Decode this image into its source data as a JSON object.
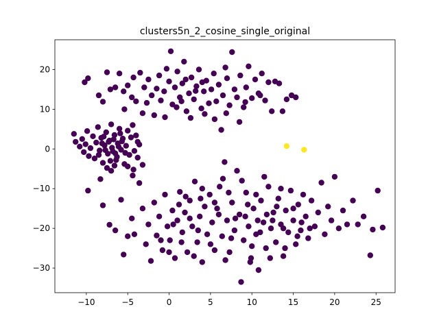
{
  "chart_data": {
    "type": "scatter",
    "title": "clusters5n_2_cosine_single_original",
    "xlabel": "",
    "ylabel": "",
    "xlim": [
      -13.8,
      27.3
    ],
    "ylim": [
      -36.2,
      27.5
    ],
    "xticks": [
      -10,
      -5,
      0,
      5,
      10,
      15,
      20,
      25
    ],
    "yticks": [
      20,
      10,
      0,
      -10,
      -20,
      -30
    ],
    "grid": false,
    "colors": {
      "cluster_0": "#440154",
      "cluster_1": "#fde725",
      "axes": "#000000"
    },
    "series": [
      {
        "cluster": 0,
        "color": "#440154",
        "points": [
          [
            -11.5,
            3.8
          ],
          [
            -11.3,
            1.8
          ],
          [
            -10.8,
            0.6
          ],
          [
            -10.5,
            2.5
          ],
          [
            -10.3,
            -0.8
          ],
          [
            -10.1,
            1.2
          ],
          [
            -9.9,
            4.5
          ],
          [
            -9.7,
            -1.8
          ],
          [
            -9.5,
            0.2
          ],
          [
            -9.2,
            3.2
          ],
          [
            -9.0,
            -2.4
          ],
          [
            -8.8,
            1.6
          ],
          [
            -8.6,
            5.5
          ],
          [
            -8.4,
            -0.4
          ],
          [
            -8.2,
            2.8
          ],
          [
            -8.0,
            -3.5
          ],
          [
            -7.8,
            0.9
          ],
          [
            -7.6,
            4.2
          ],
          [
            -7.4,
            -1.2
          ],
          [
            -7.2,
            2.1
          ],
          [
            -7.0,
            6.2
          ],
          [
            -6.8,
            -0.6
          ],
          [
            -6.6,
            3.5
          ],
          [
            -6.4,
            -2.8
          ],
          [
            -6.2,
            1.4
          ],
          [
            -6.0,
            5.1
          ],
          [
            -5.8,
            -0.2
          ],
          [
            -5.6,
            2.6
          ],
          [
            -5.4,
            -3.8
          ],
          [
            -5.2,
            0.8
          ],
          [
            -5.0,
            4.6
          ],
          [
            -4.8,
            -1.5
          ],
          [
            -4.6,
            2.9
          ],
          [
            -4.4,
            6.0
          ],
          [
            -4.2,
            -0.5
          ],
          [
            -4.0,
            3.4
          ],
          [
            -3.8,
            -2.2
          ],
          [
            -3.6,
            1.1
          ],
          [
            -6.9,
            0.3
          ],
          [
            -7.3,
            1.8
          ],
          [
            -6.5,
            -1.1
          ],
          [
            -7.7,
            -0.3
          ],
          [
            -6.1,
            0.6
          ],
          [
            -8.1,
            1.4
          ],
          [
            -5.7,
            1.9
          ],
          [
            -6.7,
            2.4
          ],
          [
            -7.9,
            3.1
          ],
          [
            -6.3,
            -2.0
          ],
          [
            -5.3,
            -1.0
          ],
          [
            -8.5,
            -1.5
          ],
          [
            -7.1,
            -3.0
          ],
          [
            -5.9,
            3.9
          ],
          [
            -6.6,
            -4.2
          ],
          [
            -7.5,
            -4.8
          ],
          [
            -8.3,
            -7.6
          ],
          [
            -7.0,
            -5.5
          ],
          [
            -5.0,
            -4.4
          ],
          [
            -4.3,
            -5.2
          ],
          [
            -3.2,
            -4.0
          ],
          [
            -4.4,
            -6.7
          ],
          [
            -3.8,
            1.8
          ],
          [
            -10.2,
            16.8
          ],
          [
            -9.8,
            17.8
          ],
          [
            -8.5,
            13.5
          ],
          [
            -8.0,
            11.9
          ],
          [
            -7.5,
            19.3
          ],
          [
            -7.1,
            15.0
          ],
          [
            -6.5,
            15.5
          ],
          [
            -6.0,
            19.0
          ],
          [
            -5.5,
            14.5
          ],
          [
            -5.4,
            10.0
          ],
          [
            -5.0,
            16.0
          ],
          [
            -4.5,
            13.0
          ],
          [
            -4.3,
            18.0
          ],
          [
            -4.0,
            12.0
          ],
          [
            -3.5,
            19.2
          ],
          [
            -3.0,
            15.5
          ],
          [
            -2.7,
            11.6
          ],
          [
            -2.5,
            17.5
          ],
          [
            -2.1,
            13.5
          ],
          [
            -1.8,
            8.5
          ],
          [
            -1.5,
            15.2
          ],
          [
            -1.2,
            18.5
          ],
          [
            -1.0,
            12.2
          ],
          [
            -0.6,
            14.5
          ],
          [
            -0.3,
            20.2
          ],
          [
            0.0,
            17.0
          ],
          [
            0.2,
            24.6
          ],
          [
            0.4,
            11.2
          ],
          [
            0.7,
            15.5
          ],
          [
            1.0,
            19.5
          ],
          [
            1.3,
            13.0
          ],
          [
            1.6,
            16.5
          ],
          [
            1.8,
            22.0
          ],
          [
            2.1,
            9.5
          ],
          [
            2.4,
            14.0
          ],
          [
            2.7,
            18.0
          ],
          [
            3.0,
            12.5
          ],
          [
            3.3,
            15.8
          ],
          [
            3.6,
            20.0
          ],
          [
            3.9,
            10.2
          ],
          [
            4.2,
            14.5
          ],
          [
            4.5,
            17.2
          ],
          [
            4.8,
            11.5
          ],
          [
            5.1,
            15.0
          ],
          [
            5.4,
            19.0
          ],
          [
            5.7,
            12.0
          ],
          [
            6.0,
            16.2
          ],
          [
            6.3,
            4.8
          ],
          [
            6.5,
            13.5
          ],
          [
            6.8,
            20.5
          ],
          [
            7.0,
            17.8
          ],
          [
            7.3,
            11.0
          ],
          [
            7.6,
            24.4
          ],
          [
            7.9,
            15.0
          ],
          [
            8.2,
            13.0
          ],
          [
            8.6,
            18.5
          ],
          [
            9.0,
            10.5
          ],
          [
            9.3,
            15.5
          ],
          [
            9.6,
            20.8
          ],
          [
            10.0,
            12.8
          ],
          [
            10.4,
            17.5
          ],
          [
            10.8,
            14.0
          ],
          [
            11.2,
            19.0
          ],
          [
            11.6,
            12.2
          ],
          [
            12.0,
            16.8
          ],
          [
            12.4,
            9.5
          ],
          [
            12.8,
            17.0
          ],
          [
            13.3,
            16.5
          ],
          [
            13.7,
            9.5
          ],
          [
            14.2,
            12.5
          ],
          [
            14.8,
            13.5
          ],
          [
            15.3,
            13.0
          ],
          [
            1.5,
            12.0
          ],
          [
            2.0,
            17.5
          ],
          [
            3.2,
            14.6
          ],
          [
            4.0,
            16.8
          ],
          [
            -0.5,
            8.0
          ],
          [
            0.9,
            10.5
          ],
          [
            5.5,
            7.5
          ],
          [
            6.9,
            9.0
          ],
          [
            8.5,
            6.8
          ],
          [
            -3.2,
            9.0
          ],
          [
            2.6,
            7.8
          ],
          [
            4.3,
            8.8
          ],
          [
            9.2,
            11.8
          ],
          [
            11.0,
            13.5
          ],
          [
            -9.8,
            -10.5
          ],
          [
            -8.0,
            -14.2
          ],
          [
            -7.2,
            -19.1
          ],
          [
            -6.5,
            -20.5
          ],
          [
            -5.8,
            -12.8
          ],
          [
            -5.5,
            -26.6
          ],
          [
            -5.0,
            -22.0
          ],
          [
            -4.5,
            -17.5
          ],
          [
            -4.2,
            -21.5
          ],
          [
            -3.6,
            -8.6
          ],
          [
            -3.2,
            -15.0
          ],
          [
            -2.8,
            -24.0
          ],
          [
            -2.5,
            -19.0
          ],
          [
            -2.2,
            -28.2
          ],
          [
            -1.8,
            -13.5
          ],
          [
            -1.5,
            -21.8
          ],
          [
            -1.2,
            -17.0
          ],
          [
            -0.8,
            -25.5
          ],
          [
            -0.5,
            -11.5
          ],
          [
            -0.2,
            -19.5
          ],
          [
            0.1,
            -23.0
          ],
          [
            0.4,
            -15.5
          ],
          [
            0.7,
            -27.5
          ],
          [
            1.0,
            -18.0
          ],
          [
            1.3,
            -10.8
          ],
          [
            1.6,
            -21.0
          ],
          [
            1.9,
            -16.0
          ],
          [
            2.2,
            -26.0
          ],
          [
            2.5,
            -13.0
          ],
          [
            2.8,
            -19.5
          ],
          [
            3.1,
            -8.2
          ],
          [
            3.4,
            -23.5
          ],
          [
            3.7,
            -17.0
          ],
          [
            4.0,
            -28.5
          ],
          [
            4.3,
            -14.5
          ],
          [
            4.6,
            -21.5
          ],
          [
            4.9,
            -11.5
          ],
          [
            5.2,
            -18.5
          ],
          [
            5.5,
            -25.5
          ],
          [
            5.8,
            -15.0
          ],
          [
            6.1,
            -9.5
          ],
          [
            6.4,
            -22.0
          ],
          [
            6.7,
            -3.3
          ],
          [
            7.0,
            -18.0
          ],
          [
            7.3,
            -26.0
          ],
          [
            7.6,
            -13.5
          ],
          [
            7.9,
            -20.5
          ],
          [
            8.2,
            -5.5
          ],
          [
            8.5,
            -16.5
          ],
          [
            8.7,
            -33.5
          ],
          [
            9.0,
            -23.0
          ],
          [
            9.3,
            -11.0
          ],
          [
            9.6,
            -19.5
          ],
          [
            9.9,
            -27.5
          ],
          [
            10.2,
            -15.0
          ],
          [
            10.5,
            -21.5
          ],
          [
            10.8,
            -30.5
          ],
          [
            11.1,
            -13.0
          ],
          [
            11.4,
            -18.5
          ],
          [
            11.7,
            -25.0
          ],
          [
            12.0,
            -9.5
          ],
          [
            12.3,
            -20.0
          ],
          [
            12.6,
            -16.0
          ],
          [
            12.9,
            -23.5
          ],
          [
            13.2,
            -12.5
          ],
          [
            13.5,
            -19.0
          ],
          [
            13.8,
            -27.0
          ],
          [
            14.1,
            -15.5
          ],
          [
            14.4,
            -21.0
          ],
          [
            14.7,
            -10.5
          ],
          [
            15.0,
            -18.0
          ],
          [
            15.3,
            -24.0
          ],
          [
            15.6,
            -14.0
          ],
          [
            15.9,
            -20.5
          ],
          [
            16.2,
            -11.5
          ],
          [
            16.5,
            -17.0
          ],
          [
            16.8,
            -22.5
          ],
          [
            17.2,
            -13.0
          ],
          [
            17.6,
            -19.5
          ],
          [
            18.0,
            -16.0
          ],
          [
            18.4,
            -8.5
          ],
          [
            18.8,
            -21.5
          ],
          [
            19.2,
            -14.5
          ],
          [
            19.6,
            -18.0
          ],
          [
            20.0,
            -7.0
          ],
          [
            20.5,
            -20.0
          ],
          [
            21.0,
            -15.5
          ],
          [
            21.5,
            -19.0
          ],
          [
            22.2,
            -13.0
          ],
          [
            22.8,
            -19.0
          ],
          [
            23.5,
            -17.0
          ],
          [
            24.3,
            -26.8
          ],
          [
            24.6,
            -20.3
          ],
          [
            25.2,
            -10.5
          ],
          [
            25.8,
            -19.8
          ],
          [
            0.5,
            -19.0
          ],
          [
            1.5,
            -23.5
          ],
          [
            2.5,
            -17.5
          ],
          [
            3.5,
            -20.5
          ],
          [
            5.0,
            -24.0
          ],
          [
            6.0,
            -16.5
          ],
          [
            7.5,
            -22.5
          ],
          [
            8.0,
            -17.5
          ],
          [
            9.5,
            -14.0
          ],
          [
            10.0,
            -24.5
          ],
          [
            11.0,
            -21.0
          ],
          [
            12.5,
            -18.0
          ],
          [
            13.0,
            -14.5
          ],
          [
            14.0,
            -25.0
          ],
          [
            15.5,
            -22.0
          ],
          [
            16.0,
            -18.5
          ],
          [
            2.0,
            -12.0
          ],
          [
            4.0,
            -10.0
          ],
          [
            6.5,
            -7.5
          ],
          [
            8.8,
            -8.0
          ],
          [
            10.5,
            -11.5
          ],
          [
            11.5,
            -7.0
          ],
          [
            13.5,
            -10.0
          ],
          [
            3.0,
            -27.0
          ],
          [
            6.8,
            -28.0
          ],
          [
            9.8,
            -28.5
          ],
          [
            12.2,
            -27.5
          ],
          [
            -1.0,
            -23.0
          ],
          [
            0.0,
            -26.0
          ],
          [
            1.2,
            -14.0
          ],
          [
            3.8,
            -12.5
          ],
          [
            5.5,
            -13.5
          ],
          [
            7.2,
            -11.0
          ],
          [
            9.2,
            -17.0
          ],
          [
            10.7,
            -18.0
          ],
          [
            11.8,
            -16.5
          ],
          [
            13.8,
            -20.0
          ],
          [
            15.0,
            -15.0
          ],
          [
            17.0,
            -20.0
          ]
        ]
      },
      {
        "cluster": 1,
        "color": "#fde725",
        "points": [
          [
            14.2,
            0.7
          ],
          [
            16.3,
            -0.2
          ]
        ]
      }
    ]
  }
}
